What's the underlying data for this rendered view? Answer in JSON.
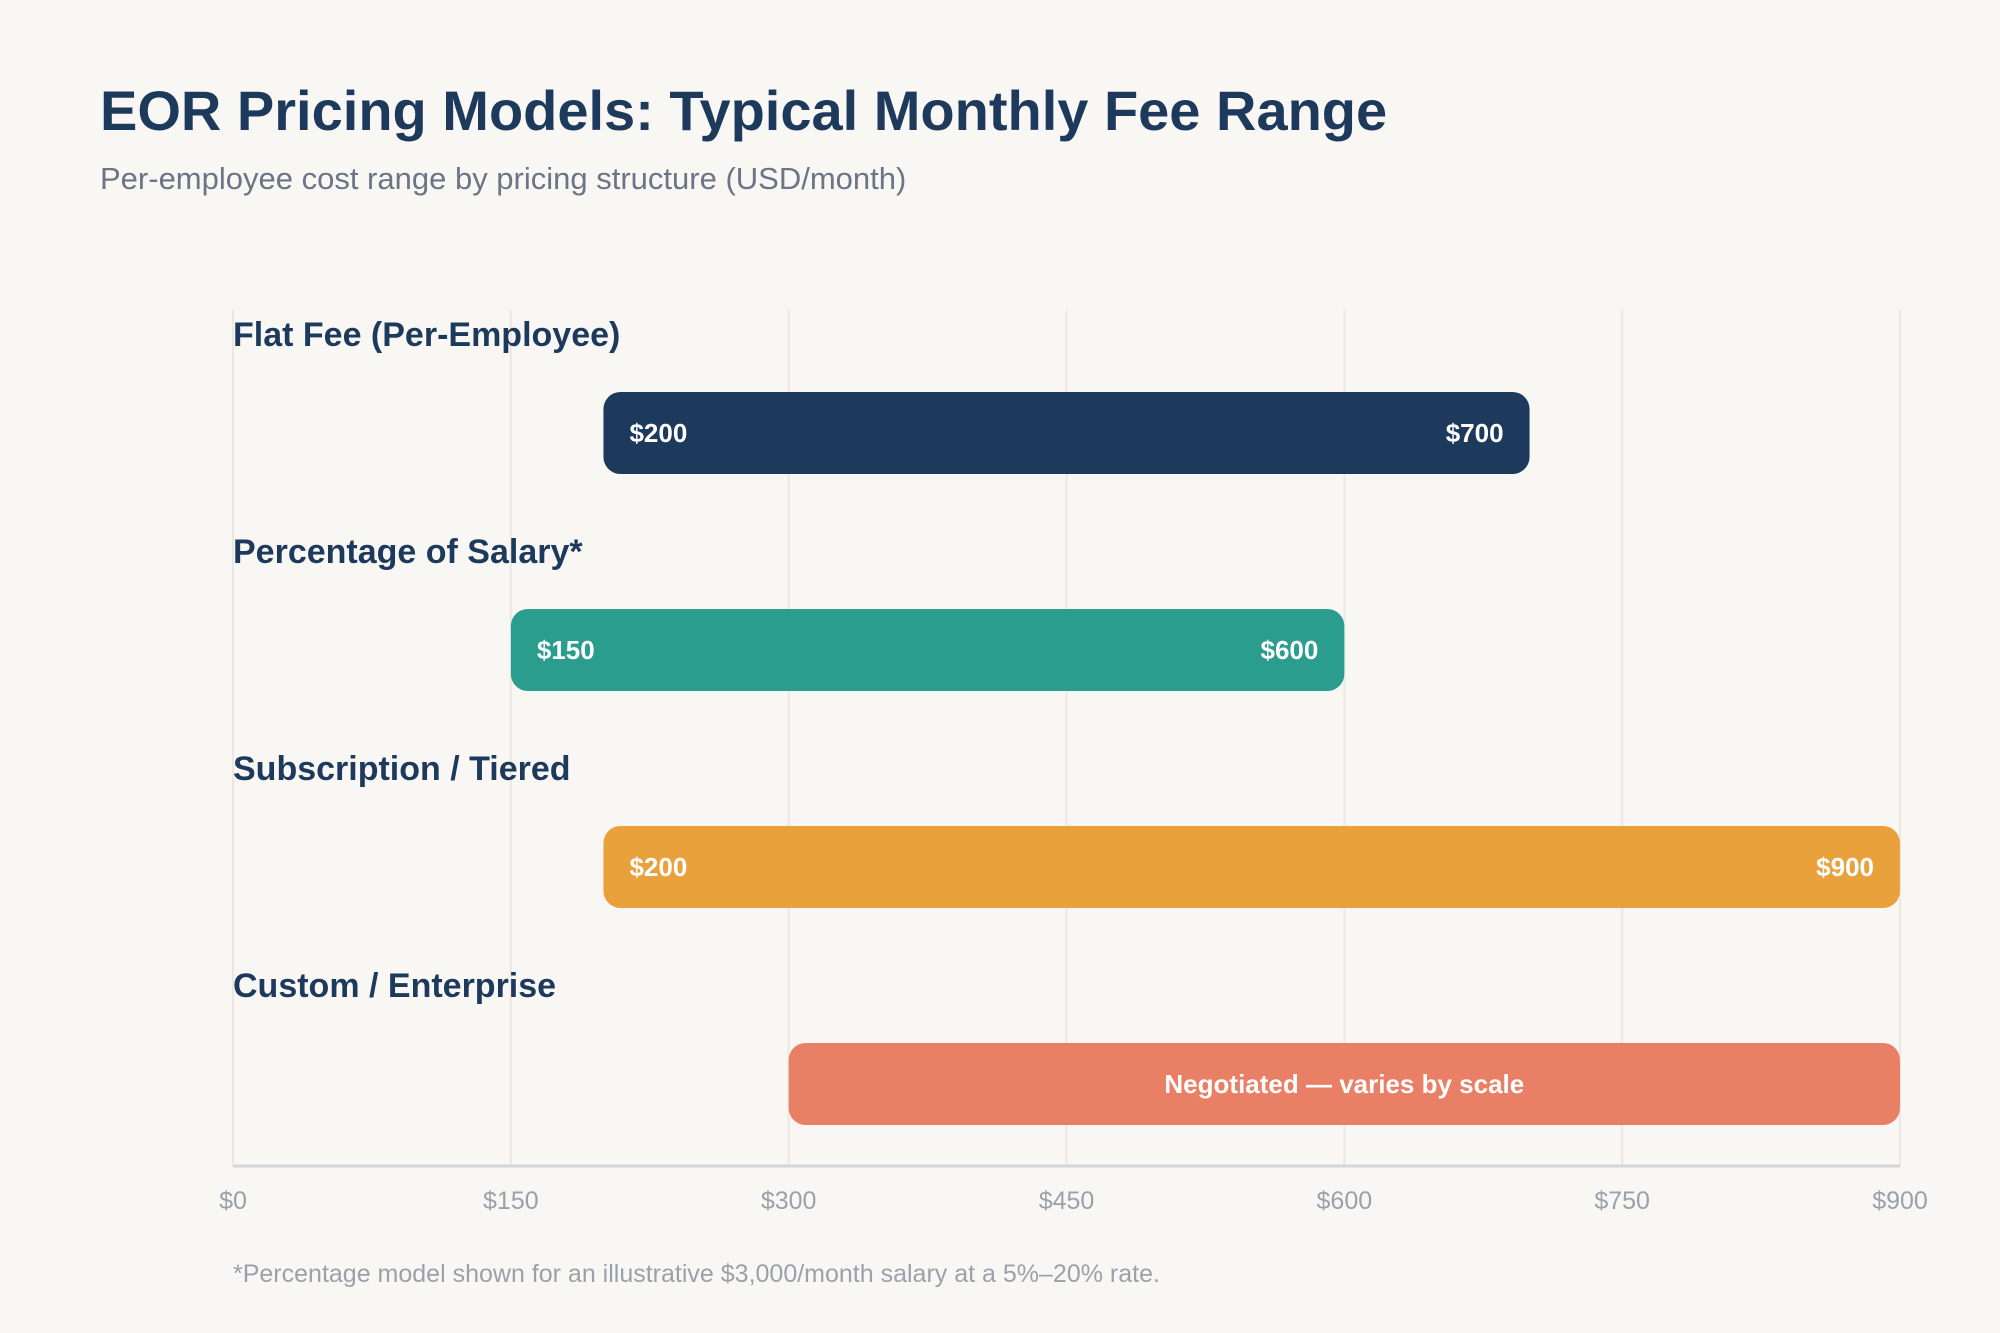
{
  "header": {
    "title": "EOR Pricing Models: Typical Monthly Fee Range",
    "subtitle": "Per-employee cost range by pricing structure (USD/month)"
  },
  "footnote": "*Percentage model shown for an illustrative $3,000/month salary at a 5%–20% rate.",
  "chart_data": {
    "type": "bar",
    "orientation": "horizontal-range",
    "title": "EOR Pricing Models: Typical Monthly Fee Range",
    "subtitle": "Per-employee cost range by pricing structure (USD/month)",
    "xlim": [
      0,
      900
    ],
    "x_ticks": [
      0,
      150,
      300,
      450,
      600,
      750,
      900
    ],
    "x_tick_labels": [
      "$0",
      "$150",
      "$300",
      "$450",
      "$600",
      "$750",
      "$900"
    ],
    "grid": true,
    "legend": "none",
    "categories": [
      "Flat Fee (Per-Employee)",
      "Percentage of Salary*",
      "Subscription / Tiered",
      "Custom / Enterprise"
    ],
    "ranges": [
      {
        "category": "Flat Fee (Per-Employee)",
        "min": 200,
        "max": 700,
        "min_label": "$200",
        "max_label": "$700",
        "color": "#1d3a5c"
      },
      {
        "category": "Percentage of Salary*",
        "min": 150,
        "max": 600,
        "min_label": "$150",
        "max_label": "$600",
        "color": "#2b9d8f"
      },
      {
        "category": "Subscription / Tiered",
        "min": 200,
        "max": 900,
        "min_label": "$200",
        "max_label": "$900",
        "color": "#e9a23b"
      },
      {
        "category": "Custom / Enterprise",
        "min": 300,
        "max": 900,
        "center_label": "Negotiated — varies by scale",
        "color": "#e97f64"
      }
    ]
  }
}
